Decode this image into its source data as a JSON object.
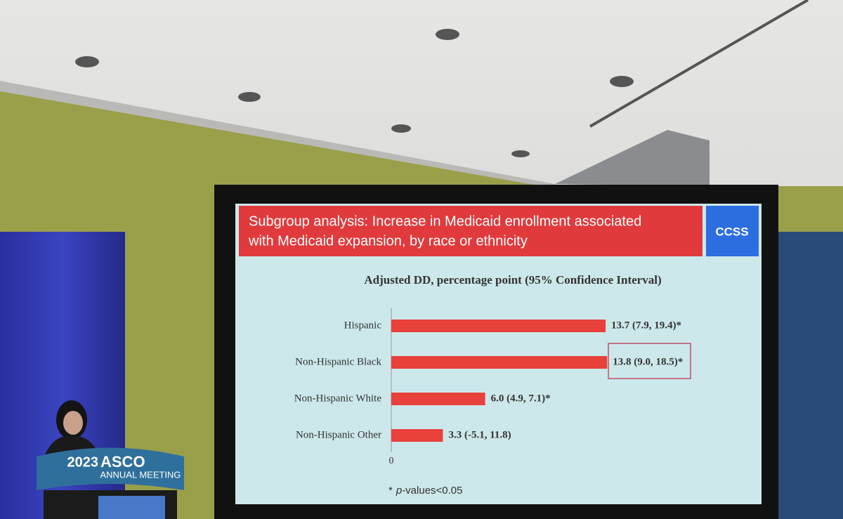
{
  "slide": {
    "title_lines": [
      "Subgroup analysis: Increase in Medicaid enrollment associated",
      "with Medicaid expansion, by race or ethnicity"
    ],
    "logo": "CCSS",
    "footnote": {
      "prefix": "*",
      "italic": "p",
      "suffix": "-values<0.05"
    }
  },
  "chart_data": {
    "type": "hbar",
    "title": "Adjusted DD, percentage point (95% Confidence Interval)",
    "categories": [
      "Hispanic",
      "Non-Hispanic Black",
      "Non-Hispanic White",
      "Non-Hispanic Other"
    ],
    "values": [
      13.7,
      13.8,
      6.0,
      3.3
    ],
    "value_labels": [
      "13.7 (7.9, 19.4)*",
      "13.8 (9.0, 18.5)*",
      "6.0 (4.9, 7.1)*",
      "3.3 (-5.1, 11.8)"
    ],
    "color": "#e8403a",
    "xlim": [
      0,
      15
    ],
    "xticks": [
      0
    ]
  },
  "podium": {
    "year": "2023",
    "brand": "ASCO",
    "event": "ANNUAL MEETING"
  }
}
